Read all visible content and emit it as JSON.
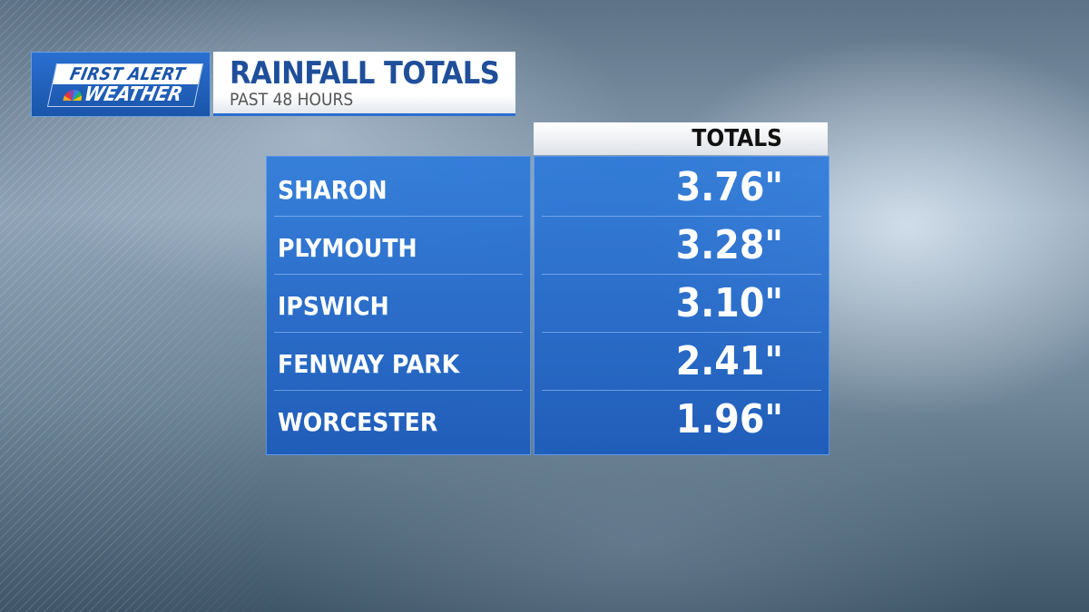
{
  "logo": {
    "line1": "FIRST ALERT",
    "line2": "WEATHER",
    "icon": "nbc-peacock-icon"
  },
  "header": {
    "title": "RAINFALL TOTALS",
    "subtitle": "PAST 48 HOURS"
  },
  "chart_data": {
    "type": "table",
    "title": "RAINFALL TOTALS",
    "subtitle": "PAST 48 HOURS",
    "columns": [
      "",
      "TOTALS"
    ],
    "rows": [
      {
        "location": "SHARON",
        "total": "3.76\""
      },
      {
        "location": "PLYMOUTH",
        "total": "3.28\""
      },
      {
        "location": "IPSWICH",
        "total": "3.10\""
      },
      {
        "location": "FENWAY PARK",
        "total": "2.41\""
      },
      {
        "location": "WORCESTER",
        "total": "1.96\""
      }
    ],
    "values": [
      3.76,
      3.28,
      3.1,
      2.41,
      1.96
    ]
  },
  "colors": {
    "accent": "#1f4f9a",
    "panel": "#2a78dc"
  }
}
